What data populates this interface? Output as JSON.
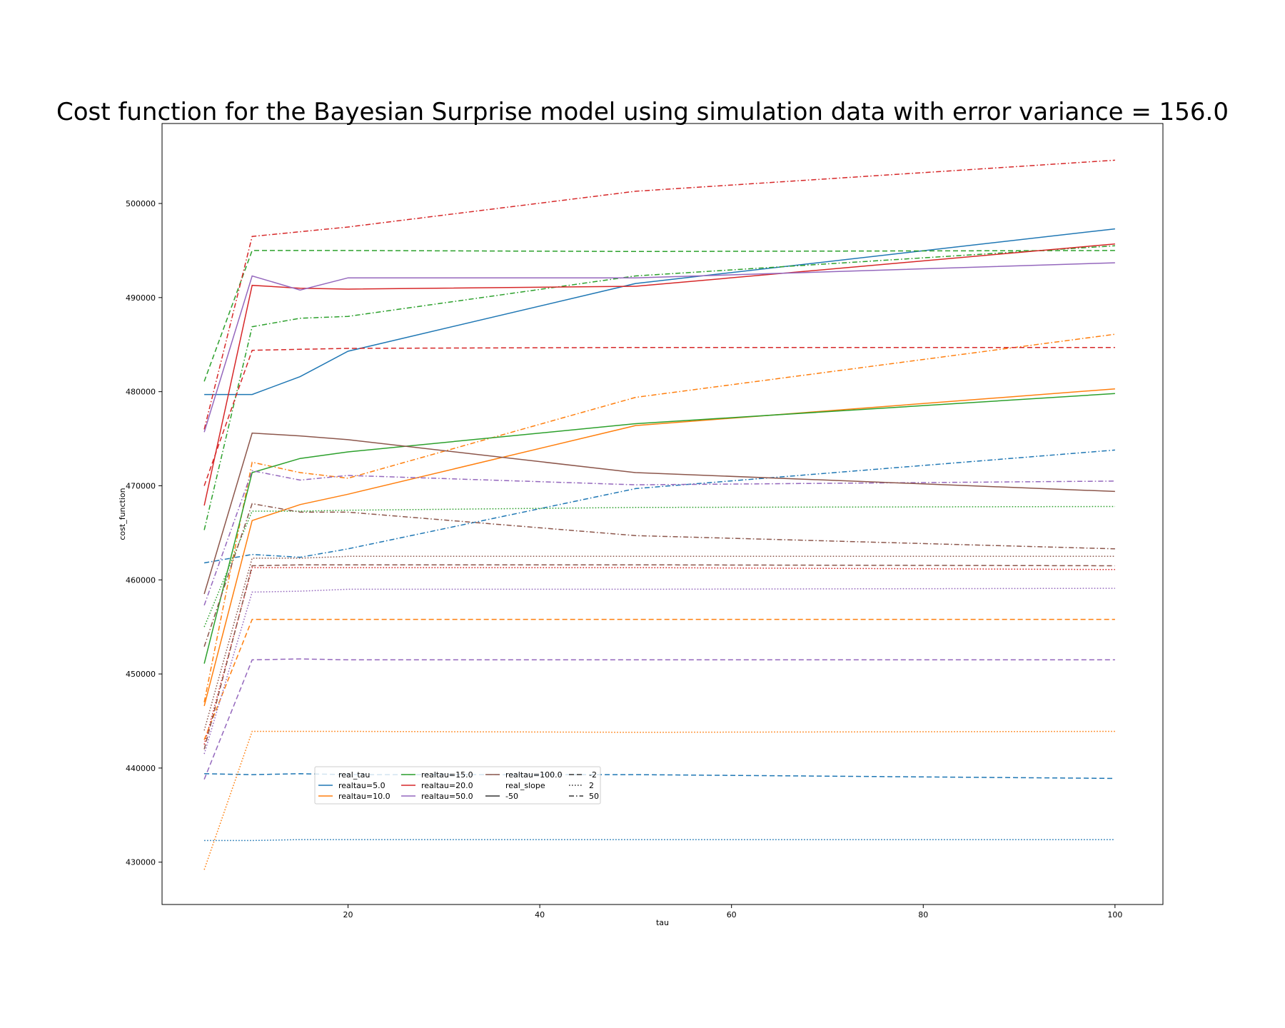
{
  "chart_data": {
    "type": "line",
    "title": "Cost function for the Bayesian Surprise model using simulation data with error variance = 156.0",
    "xlabel": "tau",
    "ylabel": "cost_function",
    "xlim": [
      0.6,
      105
    ],
    "ylim": [
      425500,
      508500
    ],
    "x": [
      5,
      10,
      15,
      20,
      50,
      100
    ],
    "xticks": [
      20,
      40,
      60,
      80,
      100
    ],
    "yticks": [
      430000,
      440000,
      450000,
      460000,
      470000,
      480000,
      490000,
      500000
    ],
    "grid": false,
    "legend_placement": "lower-left",
    "legend": {
      "columns": [
        [
          {
            "label": "real_tau",
            "kind": "header"
          },
          {
            "label": "realtau=5.0",
            "kind": "color",
            "color": "#1f77b4"
          },
          {
            "label": "realtau=10.0",
            "kind": "color",
            "color": "#ff7f0e"
          }
        ],
        [
          {
            "label": "realtau=15.0",
            "kind": "color",
            "color": "#2ca02c"
          },
          {
            "label": "realtau=20.0",
            "kind": "color",
            "color": "#d62728"
          },
          {
            "label": "realtau=50.0",
            "kind": "color",
            "color": "#9467bd"
          }
        ],
        [
          {
            "label": "realtau=100.0",
            "kind": "color",
            "color": "#8c564b"
          },
          {
            "label": "real_slope",
            "kind": "header"
          },
          {
            "label": "-50",
            "kind": "style",
            "dash": "solid"
          }
        ],
        [
          {
            "label": "-2",
            "kind": "style",
            "dash": "dashed"
          },
          {
            "label": "2",
            "kind": "style",
            "dash": "dotted"
          },
          {
            "label": "50",
            "kind": "style",
            "dash": "dashdot"
          }
        ]
      ]
    },
    "series": [
      {
        "real_tau": "5.0",
        "real_slope": "-50",
        "color": "#1f77b4",
        "dash": "solid",
        "values": [
          479700,
          479700,
          481600,
          484300,
          491500,
          497300
        ]
      },
      {
        "real_tau": "5.0",
        "real_slope": "-2",
        "color": "#1f77b4",
        "dash": "dashed",
        "values": [
          439400,
          439300,
          439400,
          439300,
          439300,
          438900
        ]
      },
      {
        "real_tau": "5.0",
        "real_slope": "2",
        "color": "#1f77b4",
        "dash": "dotted",
        "values": [
          432300,
          432300,
          432400,
          432400,
          432400,
          432400
        ]
      },
      {
        "real_tau": "5.0",
        "real_slope": "50",
        "color": "#1f77b4",
        "dash": "dashdot",
        "values": [
          461800,
          462700,
          462400,
          463300,
          469700,
          473800
        ]
      },
      {
        "real_tau": "10.0",
        "real_slope": "-50",
        "color": "#ff7f0e",
        "dash": "solid",
        "values": [
          446600,
          466300,
          468000,
          469100,
          476400,
          480300
        ]
      },
      {
        "real_tau": "10.0",
        "real_slope": "-2",
        "color": "#ff7f0e",
        "dash": "dashed",
        "values": [
          443000,
          455800,
          455800,
          455800,
          455800,
          455800
        ]
      },
      {
        "real_tau": "10.0",
        "real_slope": "2",
        "color": "#ff7f0e",
        "dash": "dotted",
        "values": [
          429200,
          443900,
          443900,
          443900,
          443800,
          443900
        ]
      },
      {
        "real_tau": "10.0",
        "real_slope": "50",
        "color": "#ff7f0e",
        "dash": "dashdot",
        "values": [
          447000,
          472500,
          471400,
          470800,
          479400,
          486100
        ]
      },
      {
        "real_tau": "15.0",
        "real_slope": "-50",
        "color": "#2ca02c",
        "dash": "solid",
        "values": [
          451100,
          471400,
          472900,
          473600,
          476600,
          479800
        ]
      },
      {
        "real_tau": "15.0",
        "real_slope": "-2",
        "color": "#2ca02c",
        "dash": "dashed",
        "values": [
          481100,
          495000,
          495000,
          495000,
          494900,
          495000
        ]
      },
      {
        "real_tau": "15.0",
        "real_slope": "2",
        "color": "#2ca02c",
        "dash": "dotted",
        "values": [
          455000,
          467300,
          467300,
          467400,
          467700,
          467800
        ]
      },
      {
        "real_tau": "15.0",
        "real_slope": "50",
        "color": "#2ca02c",
        "dash": "dashdot",
        "values": [
          465300,
          486900,
          487800,
          488000,
          492300,
          495500
        ]
      },
      {
        "real_tau": "20.0",
        "real_slope": "-50",
        "color": "#d62728",
        "dash": "solid",
        "values": [
          467900,
          491300,
          491000,
          490900,
          491200,
          495700
        ]
      },
      {
        "real_tau": "20.0",
        "real_slope": "-2",
        "color": "#d62728",
        "dash": "dashed",
        "values": [
          470000,
          484400,
          484500,
          484600,
          484700,
          484700
        ]
      },
      {
        "real_tau": "20.0",
        "real_slope": "2",
        "color": "#d62728",
        "dash": "dotted",
        "values": [
          442500,
          461300,
          461300,
          461300,
          461300,
          461100
        ]
      },
      {
        "real_tau": "20.0",
        "real_slope": "50",
        "color": "#d62728",
        "dash": "dashdot",
        "values": [
          476000,
          496500,
          497000,
          497500,
          501300,
          504600
        ]
      },
      {
        "real_tau": "50.0",
        "real_slope": "-50",
        "color": "#9467bd",
        "dash": "solid",
        "values": [
          475700,
          492300,
          490800,
          492100,
          492100,
          493700
        ]
      },
      {
        "real_tau": "50.0",
        "real_slope": "-2",
        "color": "#9467bd",
        "dash": "dashed",
        "values": [
          438800,
          451500,
          451600,
          451500,
          451500,
          451500
        ]
      },
      {
        "real_tau": "50.0",
        "real_slope": "2",
        "color": "#9467bd",
        "dash": "dotted",
        "values": [
          441500,
          458700,
          458800,
          459000,
          459000,
          459100
        ]
      },
      {
        "real_tau": "50.0",
        "real_slope": "50",
        "color": "#9467bd",
        "dash": "dashdot",
        "values": [
          457300,
          471600,
          470600,
          471100,
          470100,
          470500
        ]
      },
      {
        "real_tau": "100.0",
        "real_slope": "-50",
        "color": "#8c564b",
        "dash": "solid",
        "values": [
          458500,
          475600,
          475300,
          474900,
          471400,
          469400
        ]
      },
      {
        "real_tau": "100.0",
        "real_slope": "-2",
        "color": "#8c564b",
        "dash": "dashed",
        "values": [
          442000,
          461500,
          461600,
          461600,
          461600,
          461500
        ]
      },
      {
        "real_tau": "100.0",
        "real_slope": "2",
        "color": "#8c564b",
        "dash": "dotted",
        "values": [
          444000,
          462300,
          462300,
          462500,
          462500,
          462500
        ]
      },
      {
        "real_tau": "100.0",
        "real_slope": "50",
        "color": "#8c564b",
        "dash": "dashdot",
        "values": [
          452900,
          468100,
          467200,
          467200,
          464700,
          463300
        ]
      }
    ]
  }
}
